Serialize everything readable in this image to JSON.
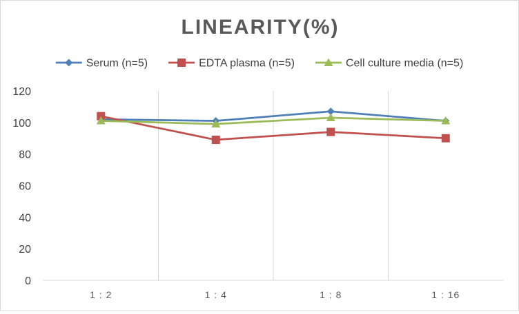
{
  "chart_data": {
    "type": "line",
    "title": "LINEARITY(%)",
    "categories": [
      "1 : 2",
      "1 : 4",
      "1 : 8",
      "1 : 16"
    ],
    "ylim": [
      0,
      120
    ],
    "yticks": [
      0,
      20,
      40,
      60,
      80,
      100,
      120
    ],
    "grid": "vertical category gridlines",
    "legend_position": "top",
    "series": [
      {
        "name": "Serum (n=5)",
        "values": [
          102,
          101,
          107,
          101
        ],
        "color": "#4e7fb6",
        "marker": "diamond"
      },
      {
        "name": "EDTA plasma (n=5)",
        "values": [
          104,
          89,
          94,
          90
        ],
        "color": "#c0504d",
        "marker": "square"
      },
      {
        "name": "Cell culture media (n=5)",
        "values": [
          101,
          99,
          103,
          101
        ],
        "color": "#9bbb59",
        "marker": "triangle"
      }
    ]
  }
}
